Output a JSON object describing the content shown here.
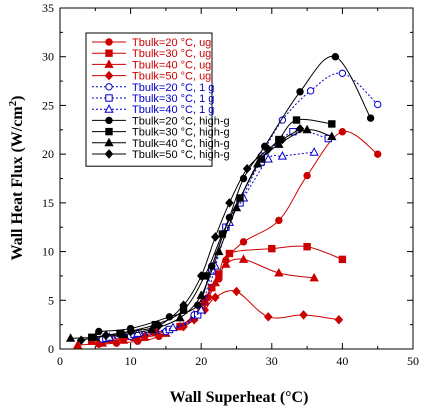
{
  "chart_data": {
    "type": "line",
    "xlabel": "Wall Superheat (°C)",
    "ylabel": "Wall Heat Flux (W/cm",
    "ylabel_sup": "2",
    "ylabel_end": ")",
    "xlim": [
      0,
      50
    ],
    "ylim": [
      0,
      35
    ],
    "xticks": [
      0,
      10,
      20,
      30,
      40,
      50
    ],
    "yticks": [
      0,
      5,
      10,
      15,
      20,
      25,
      30,
      35
    ],
    "grid": false,
    "legend_position": "top-left",
    "series": [
      {
        "name": "Tbulk=20 °C, ug",
        "color": "#cc0000",
        "marker": "circle",
        "fill": true,
        "line": "smooth",
        "x": [
          5.5,
          8,
          11,
          14,
          19.5,
          21,
          22.5,
          23.5,
          26,
          31,
          35,
          40,
          45
        ],
        "y": [
          0.5,
          0.6,
          0.8,
          1.3,
          3.5,
          5.3,
          7.2,
          9.1,
          11,
          13.2,
          17.8,
          22.3,
          20
        ]
      },
      {
        "name": "Tbulk=30 °C, ug",
        "color": "#cc0000",
        "marker": "square",
        "fill": true,
        "line": "smooth",
        "x": [
          4.5,
          7,
          10.5,
          13.5,
          17,
          19,
          20.5,
          21.5,
          22.5,
          24,
          30,
          35,
          40
        ],
        "y": [
          0.8,
          1.0,
          1.2,
          1.7,
          2.3,
          3.2,
          4.8,
          6.3,
          7.7,
          9.8,
          10.3,
          10.5,
          9.2
        ]
      },
      {
        "name": "Tbulk=40 °C, ug",
        "color": "#cc0000",
        "marker": "triangle",
        "fill": true,
        "line": "smooth",
        "x": [
          2.5,
          6,
          9,
          12,
          15,
          17,
          19,
          20.5,
          22,
          23.5,
          26,
          31,
          36
        ],
        "y": [
          0.4,
          0.6,
          0.9,
          1.2,
          1.6,
          2.3,
          3.5,
          5.0,
          6.8,
          8.7,
          9.2,
          7.8,
          7.3
        ]
      },
      {
        "name": "Tbulk=50 °C, ug",
        "color": "#cc0000",
        "marker": "diamond",
        "fill": true,
        "line": "smooth",
        "x": [
          6,
          9,
          12,
          15,
          17.5,
          19,
          20.5,
          22,
          25,
          29.5,
          34.5,
          39.5
        ],
        "y": [
          0.7,
          1.0,
          1.3,
          1.8,
          2.3,
          3.0,
          4.0,
          5.3,
          5.9,
          3.3,
          3.5,
          3.0
        ]
      },
      {
        "name": "Tbulk=20 °C, 1 g",
        "color": "#0000cc",
        "marker": "circle",
        "fill": false,
        "line": "dotted",
        "x": [
          6,
          10,
          15,
          19,
          21.5,
          23.5,
          25.5,
          28.5,
          31.5,
          35.5,
          40,
          45
        ],
        "y": [
          1.0,
          1.3,
          1.8,
          3.5,
          8.5,
          12.5,
          15.5,
          19.8,
          23.5,
          26.5,
          28.3,
          25.1
        ]
      },
      {
        "name": "Tbulk=30 °C, 1 g",
        "color": "#0000cc",
        "marker": "square",
        "fill": false,
        "line": "dotted",
        "x": [
          6.5,
          10.5,
          15.5,
          19.5,
          21.5,
          23.5,
          25.5,
          28.5,
          33,
          38
        ],
        "y": [
          1.1,
          1.5,
          2.0,
          3.5,
          8.0,
          12.5,
          15.0,
          19.2,
          22.3,
          21.6
        ]
      },
      {
        "name": "Tbulk=40 °C, 1 g",
        "color": "#0000cc",
        "marker": "triangle",
        "fill": false,
        "line": "dotted",
        "x": [
          7,
          11,
          16,
          20,
          22,
          24,
          26,
          29.5,
          31.5,
          36
        ],
        "y": [
          1.2,
          1.6,
          2.2,
          4.0,
          8.5,
          13.0,
          15.5,
          19.5,
          19.8,
          20.2
        ]
      },
      {
        "name": "Tbulk=20 °C, high-g",
        "color": "#000000",
        "marker": "circle",
        "fill": true,
        "line": "smooth",
        "x": [
          5.5,
          10,
          15.5,
          19.5,
          21.5,
          24,
          26,
          29,
          34,
          39,
          44
        ],
        "y": [
          1.8,
          2.1,
          3.3,
          4.5,
          8.5,
          13.5,
          17.5,
          20.8,
          26.4,
          30,
          23.7
        ]
      },
      {
        "name": "Tbulk=30 °C, high-g",
        "color": "#000000",
        "marker": "square",
        "fill": true,
        "line": "smooth",
        "x": [
          4.5,
          8.5,
          13.5,
          17.5,
          20.5,
          23,
          25.5,
          28.5,
          31,
          33.5,
          38.5
        ],
        "y": [
          1.2,
          1.6,
          2.5,
          4.0,
          7.5,
          11.8,
          15.5,
          19.5,
          21.5,
          23.5,
          23.1
        ]
      },
      {
        "name": "Tbulk=40 °C, high-g",
        "color": "#000000",
        "marker": "triangle",
        "fill": true,
        "line": "smooth",
        "x": [
          1.5,
          5,
          9,
          13,
          17,
          20,
          22.5,
          25,
          28,
          31,
          35,
          38.5
        ],
        "y": [
          1.1,
          1.2,
          1.5,
          2.0,
          3.2,
          5.5,
          10.0,
          14.5,
          19.0,
          21.0,
          22.5,
          21.8
        ]
      },
      {
        "name": "Tbulk=50 °C, high-g",
        "color": "#000000",
        "marker": "diamond",
        "fill": true,
        "line": "smooth",
        "x": [
          3,
          6.5,
          10,
          14,
          17.5,
          20,
          22,
          24,
          26.5,
          29.5,
          31.5,
          34
        ],
        "y": [
          0.9,
          1.4,
          1.8,
          2.4,
          4.5,
          7.5,
          11.5,
          15.0,
          18.5,
          20.5,
          21.5,
          22.6
        ]
      }
    ]
  }
}
